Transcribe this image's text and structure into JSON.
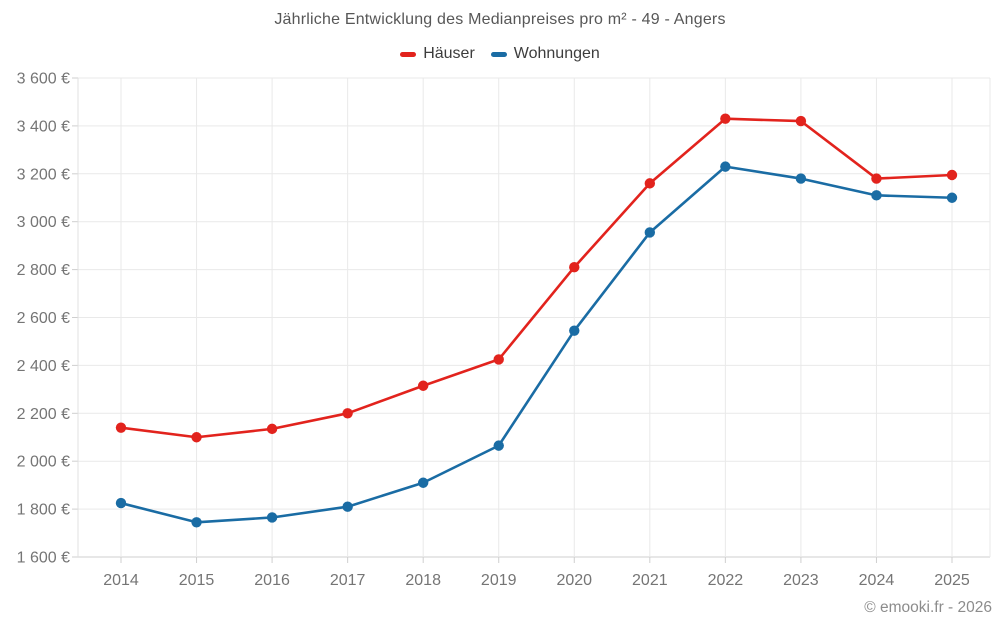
{
  "title": "Jährliche Entwicklung des Medianpreises pro m² - 49 - Angers",
  "footer": "© emooki.fr - 2026",
  "colors": {
    "haeuser": "#e2231d",
    "wohnungen": "#1a6ca4",
    "grid": "#e9e9e9",
    "axis_left": "#e0e0e0",
    "axis_bottom": "#cfcfcf",
    "tick": "#cfcfcf",
    "tick_label": "#757575"
  },
  "chart_data": {
    "type": "line",
    "x": [
      "2014",
      "2015",
      "2016",
      "2017",
      "2018",
      "2019",
      "2020",
      "2021",
      "2022",
      "2023",
      "2024",
      "2025"
    ],
    "series": [
      {
        "name": "Häuser",
        "color": "#e2231d",
        "values": [
          2140,
          2100,
          2135,
          2200,
          2315,
          2425,
          2810,
          3160,
          3430,
          3420,
          3180,
          3195
        ]
      },
      {
        "name": "Wohnungen",
        "color": "#1a6ca4",
        "values": [
          1825,
          1745,
          1765,
          1810,
          1910,
          2065,
          2545,
          2955,
          3230,
          3180,
          3110,
          3100
        ]
      }
    ],
    "ylim": [
      1600,
      3600
    ],
    "y_tick_step": 200,
    "y_tick_labels": [
      "1 600 €",
      "1 800 €",
      "2 000 €",
      "2 200 €",
      "2 400 €",
      "2 600 €",
      "2 800 €",
      "3 000 €",
      "3 200 €",
      "3 400 €",
      "3 600 €"
    ],
    "grid": true,
    "legend_position": "top",
    "title": "Jährliche Entwicklung des Medianpreises pro m² - 49 - Angers"
  }
}
